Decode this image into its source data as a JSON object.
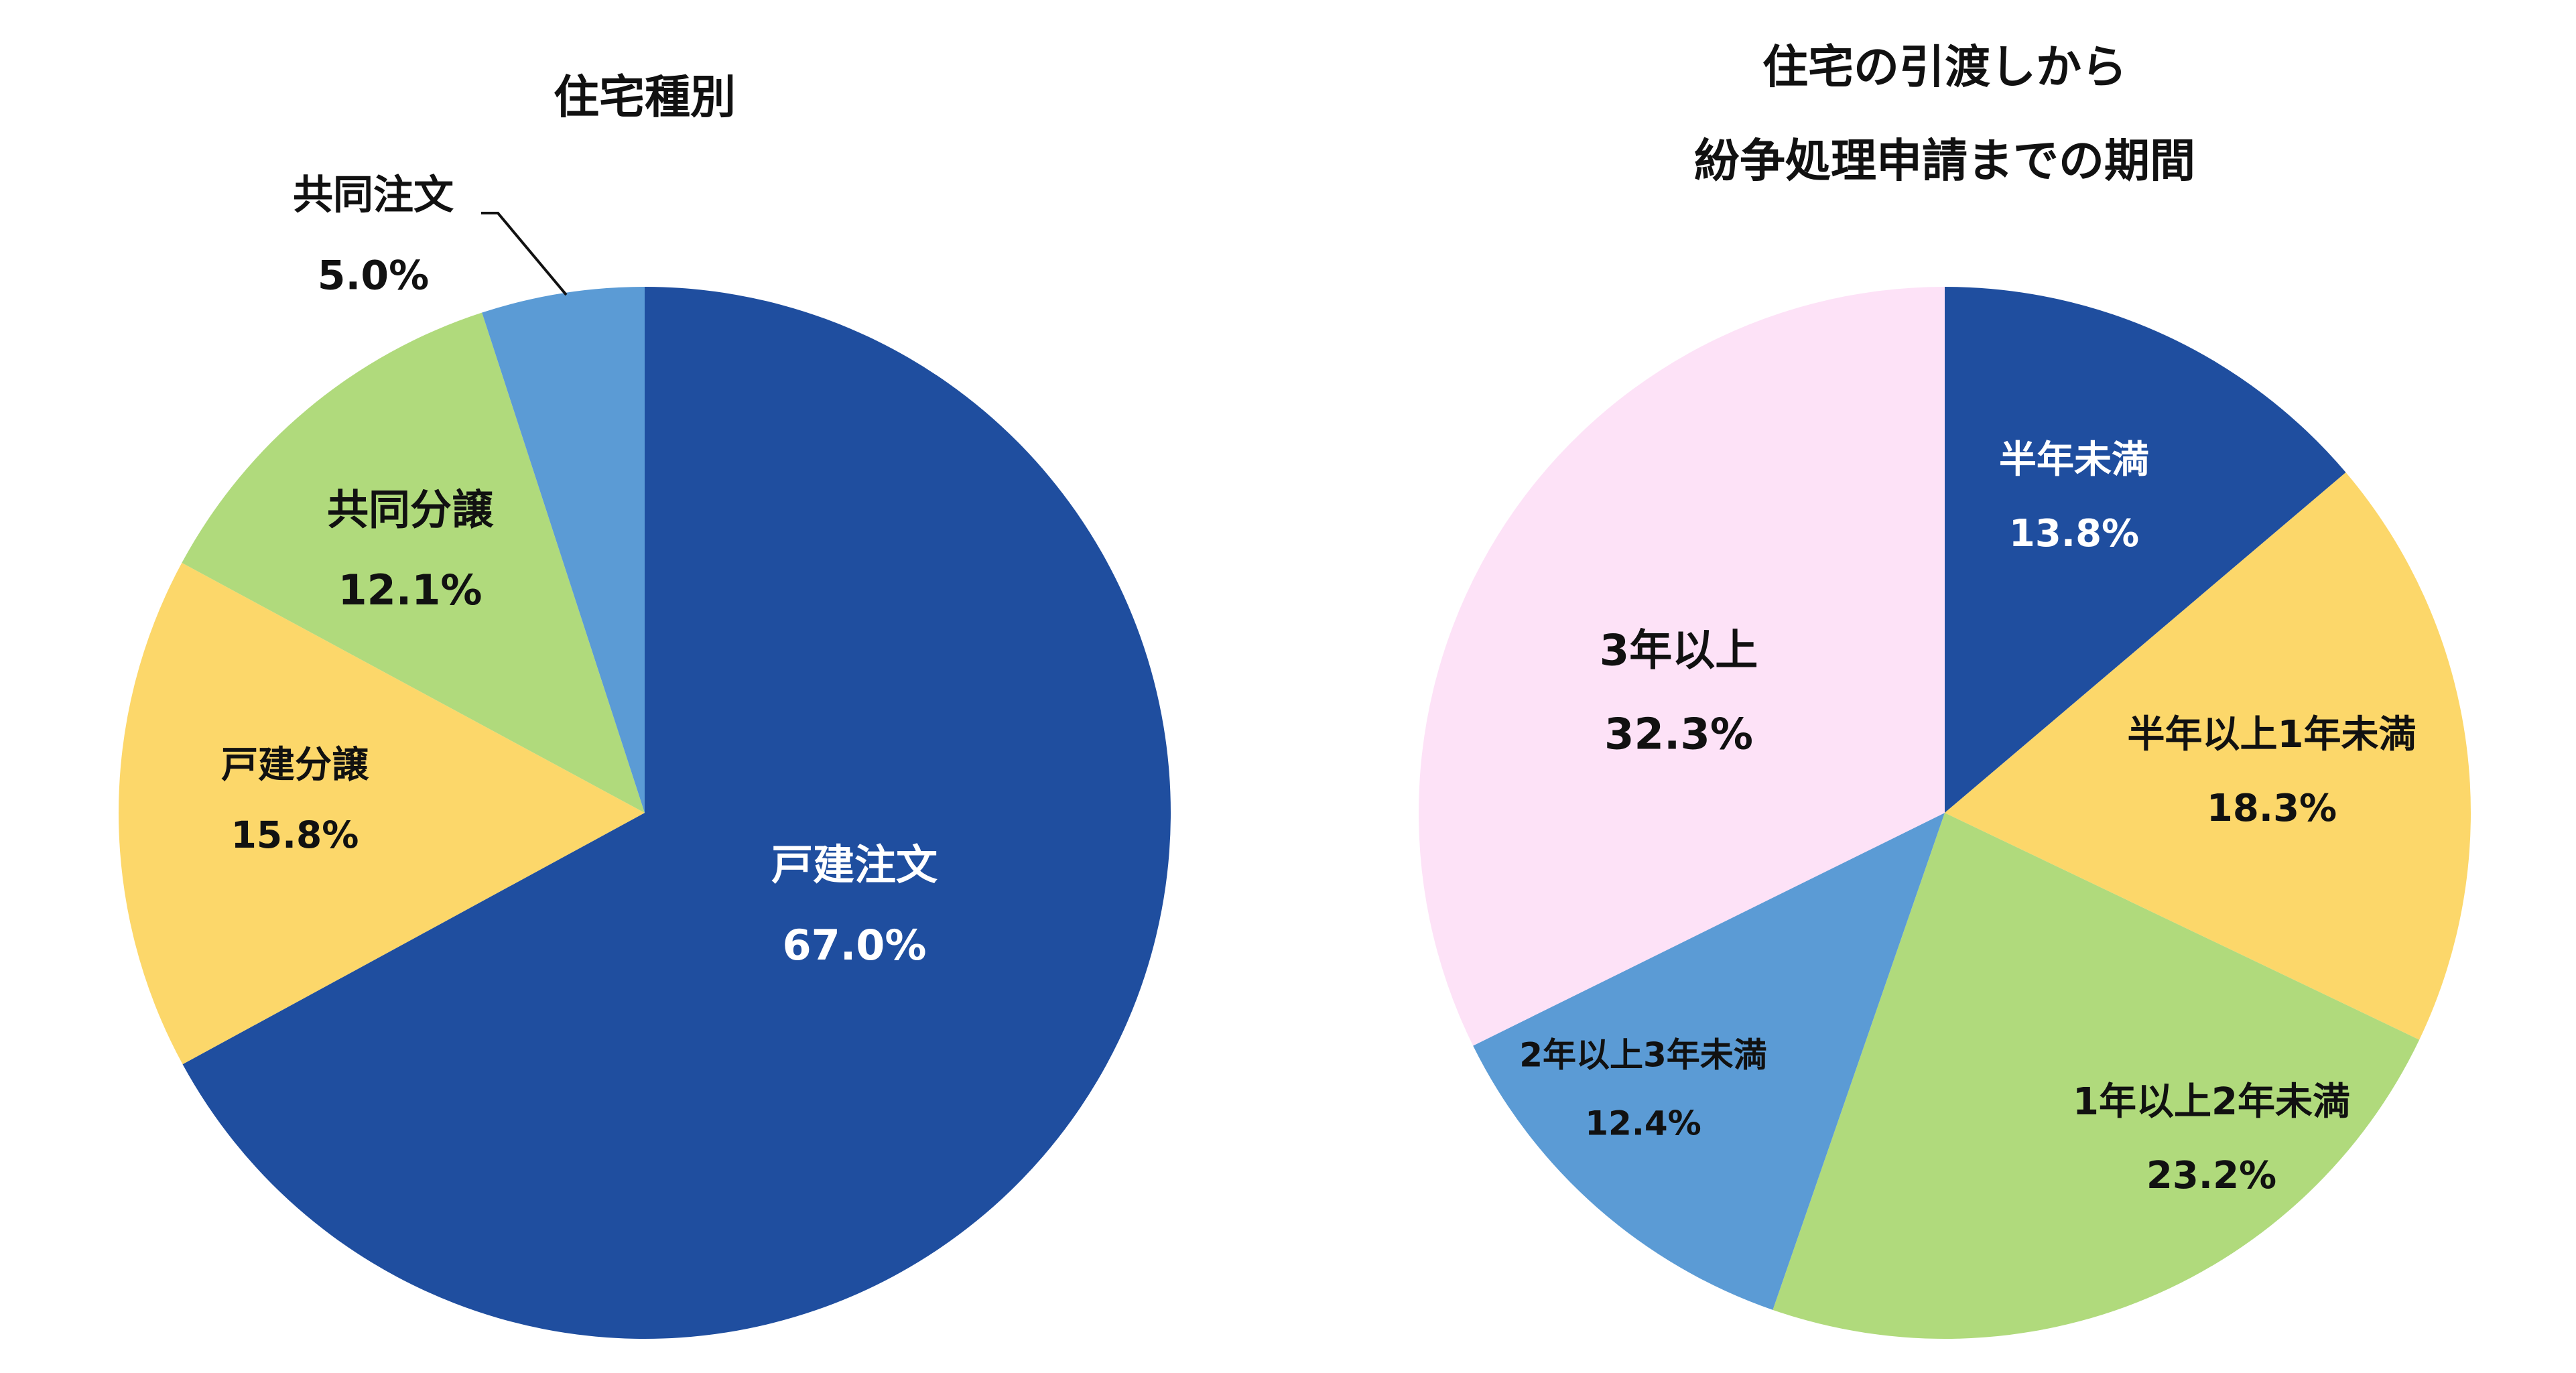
{
  "chart_data": [
    {
      "type": "pie",
      "title": [
        "住宅種別"
      ],
      "start": "12 o'clock, clockwise",
      "slices": [
        {
          "name": "戸建注文",
          "label": "67.0%",
          "value": 67.0,
          "color": "#1f4e9f",
          "text_color": "#ffffff"
        },
        {
          "name": "戸建分譲",
          "label": "15.8%",
          "value": 15.8,
          "color": "#fcd76a",
          "text_color": "#111111"
        },
        {
          "name": "共同分譲",
          "label": "12.1%",
          "value": 12.1,
          "color": "#b0da7c",
          "text_color": "#111111"
        },
        {
          "name": "共同注文",
          "label": "5.0%",
          "value": 5.0,
          "color": "#5b9bd5",
          "text_color": "#111111"
        }
      ]
    },
    {
      "type": "pie",
      "title": [
        "住宅の引渡しから",
        "紛争処理申請までの期間"
      ],
      "start": "12 o'clock, clockwise",
      "slices": [
        {
          "name": "半年未満",
          "label": "13.8%",
          "value": 13.8,
          "color": "#1f4e9f",
          "text_color": "#ffffff"
        },
        {
          "name": "半年以上1年未満",
          "label": "18.3%",
          "value": 18.3,
          "color": "#fcd76a",
          "text_color": "#111111"
        },
        {
          "name": "1年以上2年未満",
          "label": "23.2%",
          "value": 23.2,
          "color": "#b0da7c",
          "text_color": "#111111"
        },
        {
          "name": "2年以上3年未満",
          "label": "12.4%",
          "value": 12.4,
          "color": "#5b9bd5",
          "text_color": "#111111"
        },
        {
          "name": "3年以上",
          "label": "32.3%",
          "value": 32.3,
          "color": "#fde2f7",
          "text_color": "#111111"
        }
      ]
    }
  ]
}
